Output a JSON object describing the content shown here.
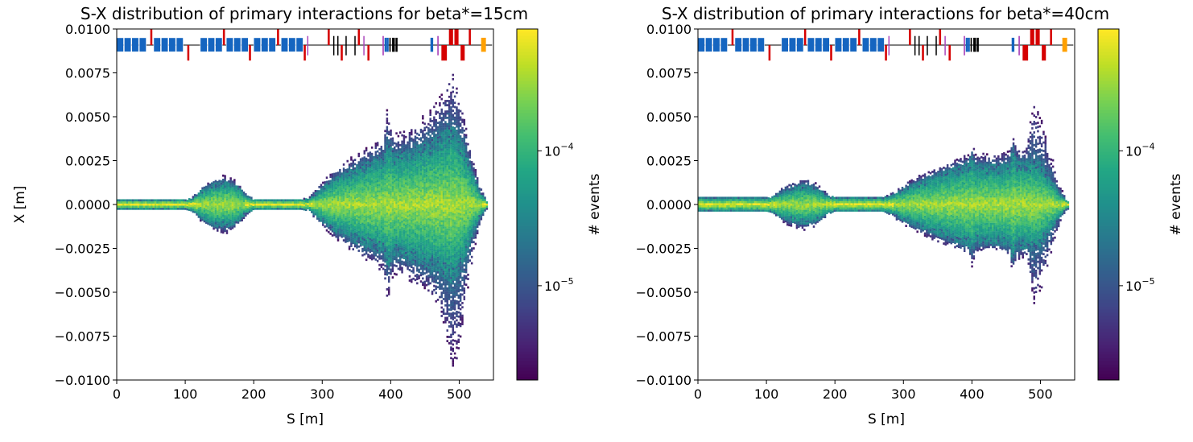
{
  "chart_data": [
    {
      "type": "heatmap",
      "title": "S-X distribution of primary interactions for beta*=15cm",
      "xlabel": "S [m]",
      "ylabel": "X [m]",
      "xlim": [
        0,
        550
      ],
      "ylim": [
        -0.01,
        0.01
      ],
      "xticks": [
        0,
        100,
        200,
        300,
        400,
        500
      ],
      "yticks": [
        0.01,
        0.0075,
        0.005,
        0.0025,
        0.0,
        -0.0025,
        -0.005,
        -0.0075,
        -0.01
      ],
      "ytick_labels": [
        "0.0100",
        "0.0075",
        "0.0050",
        "0.0025",
        "0.0000",
        "−0.0025",
        "−0.0050",
        "−0.0075",
        "−0.0100"
      ],
      "colorbar": {
        "label": "# events",
        "scale": "log",
        "range": [
          2e-06,
          0.0008
        ],
        "tick_labels": [
          {
            "value": 0.0001,
            "base": "10",
            "exp": "−4"
          },
          {
            "value": 1e-05,
            "base": "10",
            "exp": "−5"
          }
        ],
        "colormap": "viridis"
      },
      "envelope": {
        "s": [
          0,
          10,
          20,
          40,
          60,
          80,
          100,
          110,
          120,
          130,
          140,
          150,
          160,
          170,
          180,
          190,
          200,
          220,
          240,
          260,
          270,
          280,
          300,
          320,
          340,
          360,
          380,
          390,
          395,
          400,
          405,
          420,
          440,
          460,
          470,
          480,
          490,
          500,
          510,
          520,
          530,
          540
        ],
        "half_width": [
          0.0003,
          0.0003,
          0.0003,
          0.0003,
          0.0003,
          0.0003,
          0.0003,
          0.00035,
          0.0007,
          0.001,
          0.0012,
          0.0013,
          0.0013,
          0.0012,
          0.0009,
          0.0005,
          0.0003,
          0.0003,
          0.0003,
          0.0003,
          0.0003,
          0.0003,
          0.001,
          0.0016,
          0.002,
          0.0024,
          0.0027,
          0.0028,
          0.0036,
          0.0034,
          0.003,
          0.0031,
          0.0034,
          0.0038,
          0.004,
          0.0043,
          0.0045,
          0.004,
          0.003,
          0.0018,
          0.0008,
          0.0002
        ],
        "outliers_max": [
          0.0003,
          0.0003,
          0.0003,
          0.0003,
          0.0003,
          0.0003,
          0.0003,
          0.0004,
          0.0009,
          0.0012,
          0.0014,
          0.0016,
          0.0017,
          0.0015,
          0.0011,
          0.0006,
          0.0003,
          0.0003,
          0.0003,
          0.0003,
          0.0003,
          0.0004,
          0.0013,
          0.002,
          0.0026,
          0.0031,
          0.0036,
          0.0038,
          0.0055,
          0.0045,
          0.004,
          0.0042,
          0.0047,
          0.0055,
          0.0062,
          0.0068,
          0.0078,
          0.0065,
          0.0045,
          0.0025,
          0.0012,
          0.0003
        ],
        "outliers_min": [
          0.0003,
          0.0003,
          0.0003,
          0.0003,
          0.0003,
          0.0003,
          0.0003,
          0.0004,
          0.0009,
          0.0012,
          0.0014,
          0.0016,
          0.0017,
          0.0015,
          0.0011,
          0.0006,
          0.0003,
          0.0003,
          0.0003,
          0.0003,
          0.0003,
          0.0004,
          0.0013,
          0.002,
          0.0026,
          0.0031,
          0.0036,
          0.004,
          0.006,
          0.0045,
          0.004,
          0.0042,
          0.0047,
          0.0052,
          0.0062,
          0.0075,
          0.0097,
          0.0085,
          0.0055,
          0.003,
          0.0012,
          0.0003
        ]
      },
      "beamline": [
        {
          "s": 0,
          "len": 10,
          "type": "quad",
          "color": "#1565c0"
        },
        {
          "s": 11,
          "len": 10,
          "type": "quad",
          "color": "#1565c0"
        },
        {
          "s": 22,
          "len": 10,
          "type": "quad",
          "color": "#1565c0"
        },
        {
          "s": 33,
          "len": 10,
          "type": "quad",
          "color": "#1565c0"
        },
        {
          "s": 49,
          "len": 3,
          "type": "up",
          "color": "#d50000"
        },
        {
          "s": 54,
          "len": 10,
          "type": "quad",
          "color": "#1565c0"
        },
        {
          "s": 65,
          "len": 10,
          "type": "quad",
          "color": "#1565c0"
        },
        {
          "s": 76,
          "len": 10,
          "type": "quad",
          "color": "#1565c0"
        },
        {
          "s": 87,
          "len": 10,
          "type": "quad",
          "color": "#1565c0"
        },
        {
          "s": 103,
          "len": 3,
          "type": "down",
          "color": "#d50000"
        },
        {
          "s": 122,
          "len": 10,
          "type": "quad",
          "color": "#1565c0"
        },
        {
          "s": 133,
          "len": 10,
          "type": "quad",
          "color": "#1565c0"
        },
        {
          "s": 144,
          "len": 10,
          "type": "quad",
          "color": "#1565c0"
        },
        {
          "s": 155,
          "len": 3,
          "type": "up",
          "color": "#d50000"
        },
        {
          "s": 160,
          "len": 10,
          "type": "quad",
          "color": "#1565c0"
        },
        {
          "s": 171,
          "len": 10,
          "type": "quad",
          "color": "#1565c0"
        },
        {
          "s": 182,
          "len": 10,
          "type": "quad",
          "color": "#1565c0"
        },
        {
          "s": 193,
          "len": 3,
          "type": "down",
          "color": "#d50000"
        },
        {
          "s": 200,
          "len": 10,
          "type": "quad",
          "color": "#1565c0"
        },
        {
          "s": 211,
          "len": 10,
          "type": "quad",
          "color": "#1565c0"
        },
        {
          "s": 222,
          "len": 10,
          "type": "quad",
          "color": "#1565c0"
        },
        {
          "s": 234,
          "len": 3,
          "type": "up",
          "color": "#d50000"
        },
        {
          "s": 240,
          "len": 10,
          "type": "quad",
          "color": "#1565c0"
        },
        {
          "s": 251,
          "len": 10,
          "type": "quad",
          "color": "#1565c0"
        },
        {
          "s": 262,
          "len": 10,
          "type": "quad",
          "color": "#1565c0"
        },
        {
          "s": 273,
          "len": 3,
          "type": "down",
          "color": "#d50000"
        },
        {
          "s": 278,
          "len": 1,
          "type": "thin",
          "color": "#ab47bc"
        },
        {
          "s": 308,
          "len": 3,
          "type": "up",
          "color": "#d50000"
        },
        {
          "s": 316,
          "len": 1,
          "type": "thin",
          "color": "#000000"
        },
        {
          "s": 322,
          "len": 1,
          "type": "thin",
          "color": "#000000"
        },
        {
          "s": 327,
          "len": 3,
          "type": "down",
          "color": "#d50000"
        },
        {
          "s": 334,
          "len": 1,
          "type": "thin",
          "color": "#000000"
        },
        {
          "s": 347,
          "len": 1,
          "type": "thin",
          "color": "#000000"
        },
        {
          "s": 352,
          "len": 3,
          "type": "up",
          "color": "#d50000"
        },
        {
          "s": 360,
          "len": 1,
          "type": "thin",
          "color": "#ab47bc"
        },
        {
          "s": 366,
          "len": 3,
          "type": "down",
          "color": "#d50000"
        },
        {
          "s": 388,
          "len": 2,
          "type": "thin",
          "color": "#ab47bc"
        },
        {
          "s": 391,
          "len": 3,
          "type": "full",
          "color": "#1565c0"
        },
        {
          "s": 394,
          "len": 3,
          "type": "full",
          "color": "#1565c0"
        },
        {
          "s": 398,
          "len": 2,
          "type": "full",
          "color": "#000000"
        },
        {
          "s": 402,
          "len": 4,
          "type": "full",
          "color": "#000000"
        },
        {
          "s": 407,
          "len": 3,
          "type": "full",
          "color": "#000000"
        },
        {
          "s": 458,
          "len": 4,
          "type": "full",
          "color": "#1565c0"
        },
        {
          "s": 468,
          "len": 2,
          "type": "thin",
          "color": "#ab47bc"
        },
        {
          "s": 474,
          "len": 8,
          "type": "down",
          "color": "#d50000"
        },
        {
          "s": 485,
          "len": 6,
          "type": "up",
          "color": "#d50000"
        },
        {
          "s": 493,
          "len": 6,
          "type": "up",
          "color": "#d50000"
        },
        {
          "s": 502,
          "len": 6,
          "type": "down",
          "color": "#d50000"
        },
        {
          "s": 514,
          "len": 3,
          "type": "up",
          "color": "#d50000"
        },
        {
          "s": 532,
          "len": 7,
          "type": "full",
          "color": "#ffa000"
        }
      ]
    },
    {
      "type": "heatmap",
      "title": "S-X distribution of primary interactions for beta*=40cm",
      "xlabel": "S [m]",
      "ylabel": "",
      "xlim": [
        0,
        550
      ],
      "ylim": [
        -0.01,
        0.01
      ],
      "xticks": [
        0,
        100,
        200,
        300,
        400,
        500
      ],
      "yticks": [
        0.01,
        0.0075,
        0.005,
        0.0025,
        0.0,
        -0.0025,
        -0.005,
        -0.0075,
        -0.01
      ],
      "ytick_labels": [
        "0.0100",
        "0.0075",
        "0.0050",
        "0.0025",
        "0.0000",
        "−0.0025",
        "−0.0050",
        "−0.0075",
        "−0.0100"
      ],
      "colorbar": {
        "label": "# events",
        "scale": "log",
        "range": [
          2e-06,
          0.0008
        ],
        "tick_labels": [
          {
            "value": 0.0001,
            "base": "10",
            "exp": "−4"
          },
          {
            "value": 1e-05,
            "base": "10",
            "exp": "−5"
          }
        ],
        "colormap": "viridis"
      },
      "envelope": {
        "s": [
          0,
          20,
          40,
          60,
          80,
          100,
          110,
          120,
          130,
          140,
          150,
          160,
          170,
          180,
          190,
          200,
          220,
          240,
          260,
          270,
          280,
          300,
          320,
          340,
          360,
          380,
          395,
          400,
          405,
          420,
          440,
          455,
          460,
          465,
          480,
          490,
          500,
          510,
          520,
          530,
          540
        ],
        "half_width": [
          0.0004,
          0.0004,
          0.0004,
          0.0004,
          0.0004,
          0.0004,
          0.00045,
          0.0007,
          0.0009,
          0.001,
          0.0011,
          0.0011,
          0.001,
          0.0008,
          0.0005,
          0.0004,
          0.0004,
          0.0004,
          0.0004,
          0.0004,
          0.0005,
          0.0009,
          0.0013,
          0.0016,
          0.0019,
          0.0022,
          0.0024,
          0.0028,
          0.0023,
          0.0023,
          0.0023,
          0.0024,
          0.0033,
          0.0025,
          0.0025,
          0.0026,
          0.0024,
          0.0018,
          0.0012,
          0.0006,
          0.0002
        ],
        "outliers_max": [
          0.0004,
          0.0004,
          0.0004,
          0.0004,
          0.0004,
          0.0004,
          0.0005,
          0.0009,
          0.0012,
          0.0013,
          0.0015,
          0.0015,
          0.0013,
          0.001,
          0.0006,
          0.0004,
          0.0004,
          0.0004,
          0.0004,
          0.0004,
          0.0006,
          0.0012,
          0.0016,
          0.002,
          0.0023,
          0.0027,
          0.0029,
          0.0035,
          0.003,
          0.0029,
          0.0029,
          0.0031,
          0.004,
          0.0033,
          0.0035,
          0.006,
          0.005,
          0.0038,
          0.0022,
          0.001,
          0.0003
        ],
        "outliers_min": [
          0.0004,
          0.0004,
          0.0004,
          0.0004,
          0.0004,
          0.0004,
          0.0005,
          0.0009,
          0.0012,
          0.0013,
          0.0015,
          0.0015,
          0.0013,
          0.001,
          0.0006,
          0.0004,
          0.0004,
          0.0004,
          0.0004,
          0.0004,
          0.0006,
          0.0012,
          0.0016,
          0.002,
          0.0023,
          0.0027,
          0.0029,
          0.0036,
          0.003,
          0.0026,
          0.0026,
          0.003,
          0.004,
          0.0032,
          0.003,
          0.006,
          0.005,
          0.0038,
          0.0022,
          0.001,
          0.0003
        ]
      },
      "beamline": [
        {
          "s": 0,
          "len": 10,
          "type": "quad",
          "color": "#1565c0"
        },
        {
          "s": 11,
          "len": 10,
          "type": "quad",
          "color": "#1565c0"
        },
        {
          "s": 22,
          "len": 10,
          "type": "quad",
          "color": "#1565c0"
        },
        {
          "s": 33,
          "len": 10,
          "type": "quad",
          "color": "#1565c0"
        },
        {
          "s": 49,
          "len": 3,
          "type": "up",
          "color": "#d50000"
        },
        {
          "s": 54,
          "len": 10,
          "type": "quad",
          "color": "#1565c0"
        },
        {
          "s": 65,
          "len": 10,
          "type": "quad",
          "color": "#1565c0"
        },
        {
          "s": 76,
          "len": 10,
          "type": "quad",
          "color": "#1565c0"
        },
        {
          "s": 87,
          "len": 10,
          "type": "quad",
          "color": "#1565c0"
        },
        {
          "s": 103,
          "len": 3,
          "type": "down",
          "color": "#d50000"
        },
        {
          "s": 122,
          "len": 10,
          "type": "quad",
          "color": "#1565c0"
        },
        {
          "s": 133,
          "len": 10,
          "type": "quad",
          "color": "#1565c0"
        },
        {
          "s": 144,
          "len": 10,
          "type": "quad",
          "color": "#1565c0"
        },
        {
          "s": 155,
          "len": 3,
          "type": "up",
          "color": "#d50000"
        },
        {
          "s": 160,
          "len": 10,
          "type": "quad",
          "color": "#1565c0"
        },
        {
          "s": 171,
          "len": 10,
          "type": "quad",
          "color": "#1565c0"
        },
        {
          "s": 182,
          "len": 10,
          "type": "quad",
          "color": "#1565c0"
        },
        {
          "s": 193,
          "len": 3,
          "type": "down",
          "color": "#d50000"
        },
        {
          "s": 200,
          "len": 10,
          "type": "quad",
          "color": "#1565c0"
        },
        {
          "s": 211,
          "len": 10,
          "type": "quad",
          "color": "#1565c0"
        },
        {
          "s": 222,
          "len": 10,
          "type": "quad",
          "color": "#1565c0"
        },
        {
          "s": 234,
          "len": 3,
          "type": "up",
          "color": "#d50000"
        },
        {
          "s": 240,
          "len": 10,
          "type": "quad",
          "color": "#1565c0"
        },
        {
          "s": 251,
          "len": 10,
          "type": "quad",
          "color": "#1565c0"
        },
        {
          "s": 262,
          "len": 10,
          "type": "quad",
          "color": "#1565c0"
        },
        {
          "s": 273,
          "len": 3,
          "type": "down",
          "color": "#d50000"
        },
        {
          "s": 278,
          "len": 1,
          "type": "thin",
          "color": "#ab47bc"
        },
        {
          "s": 308,
          "len": 3,
          "type": "up",
          "color": "#d50000"
        },
        {
          "s": 316,
          "len": 1,
          "type": "thin",
          "color": "#000000"
        },
        {
          "s": 322,
          "len": 1,
          "type": "thin",
          "color": "#000000"
        },
        {
          "s": 327,
          "len": 3,
          "type": "down",
          "color": "#d50000"
        },
        {
          "s": 334,
          "len": 1,
          "type": "thin",
          "color": "#000000"
        },
        {
          "s": 347,
          "len": 1,
          "type": "thin",
          "color": "#000000"
        },
        {
          "s": 352,
          "len": 3,
          "type": "up",
          "color": "#d50000"
        },
        {
          "s": 360,
          "len": 1,
          "type": "thin",
          "color": "#ab47bc"
        },
        {
          "s": 366,
          "len": 3,
          "type": "down",
          "color": "#d50000"
        },
        {
          "s": 388,
          "len": 2,
          "type": "thin",
          "color": "#ab47bc"
        },
        {
          "s": 391,
          "len": 3,
          "type": "full",
          "color": "#1565c0"
        },
        {
          "s": 394,
          "len": 3,
          "type": "full",
          "color": "#1565c0"
        },
        {
          "s": 398,
          "len": 2,
          "type": "full",
          "color": "#000000"
        },
        {
          "s": 402,
          "len": 4,
          "type": "full",
          "color": "#000000"
        },
        {
          "s": 407,
          "len": 3,
          "type": "full",
          "color": "#000000"
        },
        {
          "s": 458,
          "len": 4,
          "type": "full",
          "color": "#1565c0"
        },
        {
          "s": 468,
          "len": 2,
          "type": "thin",
          "color": "#ab47bc"
        },
        {
          "s": 474,
          "len": 8,
          "type": "down",
          "color": "#d50000"
        },
        {
          "s": 485,
          "len": 6,
          "type": "up",
          "color": "#d50000"
        },
        {
          "s": 493,
          "len": 6,
          "type": "up",
          "color": "#d50000"
        },
        {
          "s": 502,
          "len": 6,
          "type": "down",
          "color": "#d50000"
        },
        {
          "s": 514,
          "len": 3,
          "type": "up",
          "color": "#d50000"
        },
        {
          "s": 532,
          "len": 7,
          "type": "full",
          "color": "#ffa000"
        }
      ]
    }
  ]
}
